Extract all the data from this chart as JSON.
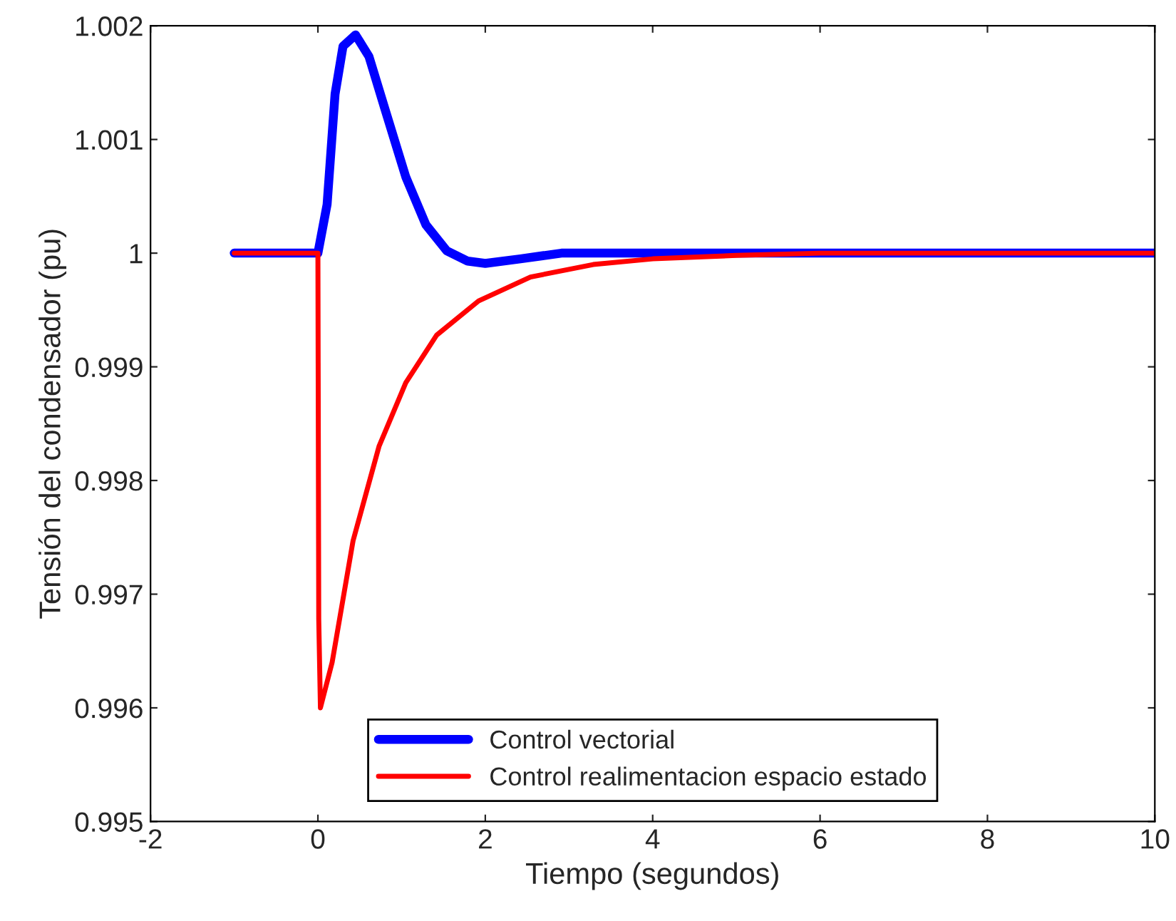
{
  "chart_data": {
    "type": "line",
    "xlabel": "Tiempo (segundos)",
    "ylabel": "Tensión del condensador (pu)",
    "xlim": [
      -2,
      10
    ],
    "xticks": [
      -2,
      0,
      2,
      4,
      6,
      8,
      10
    ],
    "ylim": [
      0.995,
      1.002
    ],
    "yticks": [
      0.995,
      0.996,
      0.997,
      0.998,
      0.999,
      1,
      1.001,
      1.002
    ],
    "grid": false,
    "legend": "bottom",
    "marker": "none",
    "line_style": "solid",
    "series": [
      {
        "name": "Control vectorial",
        "color": "#0000ff",
        "x": [
          -1,
          0,
          0.11,
          0.205,
          0.3,
          0.45,
          0.61,
          0.8,
          1.05,
          1.29,
          1.54,
          1.79,
          2.0,
          2.42,
          2.91,
          3.5,
          10
        ],
        "values": [
          1.0,
          1.0,
          1.00043,
          1.0014,
          1.00182,
          1.00192,
          1.00173,
          1.00127,
          1.00067,
          1.00025,
          1.00002,
          0.99993,
          0.99991,
          0.99995,
          1.0,
          1.0,
          1.0
        ]
      },
      {
        "name": "Control realimentacion espacio estado",
        "color": "#ff0000",
        "x": [
          -1,
          0,
          0.01,
          0.03,
          0.17,
          0.42,
          0.73,
          1.05,
          1.42,
          1.92,
          2.54,
          3.29,
          4,
          5,
          6,
          10
        ],
        "values": [
          1.0,
          1.0,
          0.99678,
          0.996,
          0.9964,
          0.99747,
          0.9983,
          0.99886,
          0.99928,
          0.99958,
          0.99979,
          0.9999,
          0.99995,
          0.99998,
          1.0,
          1.0
        ]
      }
    ]
  }
}
